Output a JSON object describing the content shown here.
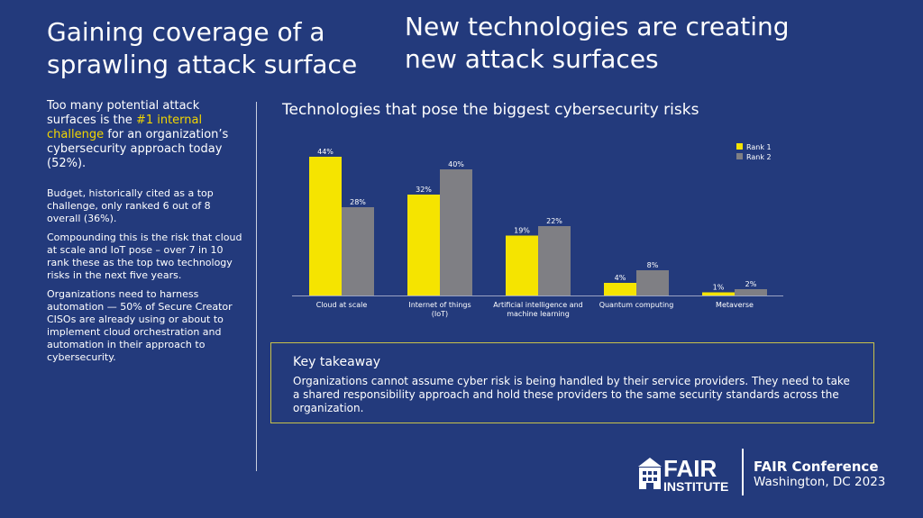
{
  "slide": {
    "left_title": "Gaining coverage of a sprawling attack surface",
    "right_title": "New technologies are creating new attack surfaces",
    "left_col": {
      "p1_before": "Too many potential attack surfaces is the ",
      "p1_highlight": "#1 internal challenge",
      "p1_after": " for an organization’s cybersecurity approach today (52%).",
      "p2": "Budget, historically cited as a top challenge, only ranked 6 out of 8 overall (36%).",
      "p3": "Compounding this is the risk that cloud at scale and IoT pose – over 7 in 10 rank these as the top two technology risks in the next five years.",
      "p4": "Organizations need to harness automation — 50% of Secure Creator CISOs are already using or about to implement cloud orchestration and automation in their approach to cybersecurity."
    },
    "takeaway": {
      "heading": "Key takeaway",
      "body": "Organizations cannot assume cyber risk is being handled by their service providers. They need to take a shared responsibility approach and hold these providers to the same security standards across the organization."
    },
    "footer": {
      "logo_line1": "FAIR",
      "logo_line2": "INSTITUTE",
      "conference_name": "FAIR Conference",
      "conference_location": "Washington, DC 2023"
    }
  },
  "colors": {
    "background": "#233a7c",
    "rank1": "#f5e400",
    "rank2": "#7f7f84",
    "highlight": "#f2d600"
  },
  "chart_data": {
    "type": "bar",
    "title": "Technologies that pose the biggest cybersecurity risks",
    "categories": [
      [
        "Cloud at scale"
      ],
      [
        "Internet of things",
        "(IoT)"
      ],
      [
        "Artificial intelligence and",
        "machine learning"
      ],
      [
        "Quantum computing"
      ],
      [
        "Metaverse"
      ]
    ],
    "series": [
      {
        "name": "Rank 1",
        "values": [
          44,
          32,
          19,
          4,
          1
        ]
      },
      {
        "name": "Rank 2",
        "values": [
          28,
          40,
          22,
          8,
          2
        ]
      }
    ],
    "value_suffix": "%",
    "ylim": [
      0,
      44
    ],
    "legend": "top-right",
    "grid": false
  }
}
